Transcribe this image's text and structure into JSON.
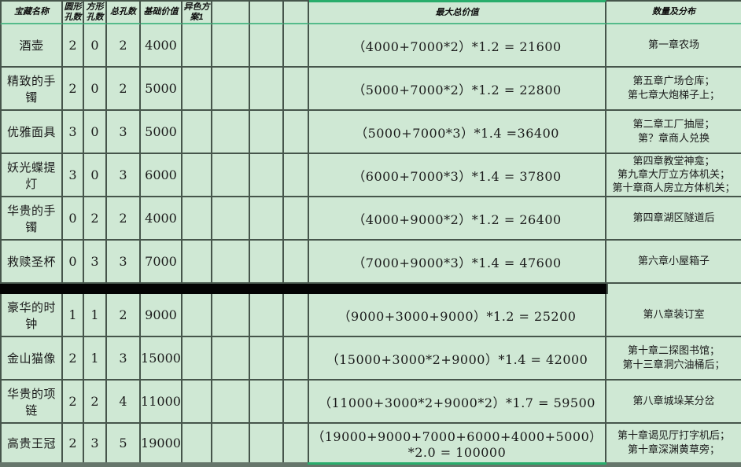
{
  "colors": {
    "background": "#cfe8d4",
    "grid_line": "#46554b",
    "header_rule_green": "#55bb8b",
    "selection_green": "#29ad6c",
    "divider_black": "#030303",
    "bottom_edge": "#66766b"
  },
  "table": {
    "headers": [
      {
        "label": "宝藏名称"
      },
      {
        "label": "圆形\n孔数"
      },
      {
        "label": "方形\n孔数"
      },
      {
        "label": "总孔数"
      },
      {
        "label": "基础价值"
      },
      {
        "label": "异色方\n案1"
      },
      {
        "label": ""
      },
      {
        "label": ""
      },
      {
        "label": ""
      },
      {
        "label": "最大总价值"
      },
      {
        "label": "数量及分布"
      }
    ],
    "divider_after_row": 6,
    "rows": [
      {
        "name": "酒壶",
        "round_holes": "2",
        "square_holes": "0",
        "total_holes": "2",
        "base_value": "4000",
        "scheme1": "",
        "extra1": "",
        "extra2": "",
        "extra3": "",
        "max_total_value": "（4000+7000*2）*1.2 = 21600",
        "distribution": "第一章农场"
      },
      {
        "name": "精致的手镯",
        "round_holes": "2",
        "square_holes": "0",
        "total_holes": "2",
        "base_value": "5000",
        "scheme1": "",
        "extra1": "",
        "extra2": "",
        "extra3": "",
        "max_total_value": "（5000+7000*2）*1.2 = 22800",
        "distribution": "第五章广场仓库；\n第七章大炮梯子上；"
      },
      {
        "name": "优雅面具",
        "round_holes": "3",
        "square_holes": "0",
        "total_holes": "3",
        "base_value": "5000",
        "scheme1": "",
        "extra1": "",
        "extra2": "",
        "extra3": "",
        "max_total_value": "（5000+7000*3）*1.4 =36400",
        "distribution": "第二章工厂抽屉；\n第？章商人兑换"
      },
      {
        "name": "妖光蝶提灯",
        "round_holes": "3",
        "square_holes": "0",
        "total_holes": "3",
        "base_value": "6000",
        "scheme1": "",
        "extra1": "",
        "extra2": "",
        "extra3": "",
        "max_total_value": "（6000+7000*3）*1.4 = 37800",
        "distribution": "第四章教堂神龛；\n第九章大厅立方体机关；\n第十章商人房立方体机关；"
      },
      {
        "name": "华贵的手镯",
        "round_holes": "0",
        "square_holes": "2",
        "total_holes": "2",
        "base_value": "4000",
        "scheme1": "",
        "extra1": "",
        "extra2": "",
        "extra3": "",
        "max_total_value": "（4000+9000*2）*1.2 = 26400",
        "distribution": "第四章湖区隧道后"
      },
      {
        "name": "救赎圣杯",
        "round_holes": "0",
        "square_holes": "3",
        "total_holes": "3",
        "base_value": "7000",
        "scheme1": "",
        "extra1": "",
        "extra2": "",
        "extra3": "",
        "max_total_value": "（7000+9000*3）*1.4 = 47600",
        "distribution": "第六章小屋箱子"
      },
      {
        "name": "豪华的时钟",
        "round_holes": "1",
        "square_holes": "1",
        "total_holes": "2",
        "base_value": "9000",
        "scheme1": "",
        "extra1": "",
        "extra2": "",
        "extra3": "",
        "max_total_value": "（9000+3000+9000）*1.2 = 25200",
        "distribution": "第八章装订室"
      },
      {
        "name": "金山猫像",
        "round_holes": "2",
        "square_holes": "1",
        "total_holes": "3",
        "base_value": "15000",
        "scheme1": "",
        "extra1": "",
        "extra2": "",
        "extra3": "",
        "max_total_value": "（15000+3000*2+9000）*1.4 = 42000",
        "distribution": "第十章二探图书馆；\n第十三章洞穴油桶后；"
      },
      {
        "name": "华贵的项链",
        "round_holes": "2",
        "square_holes": "2",
        "total_holes": "4",
        "base_value": "11000",
        "scheme1": "",
        "extra1": "",
        "extra2": "",
        "extra3": "",
        "max_total_value": "（11000+3000*2+9000*2）*1.7 = 59500",
        "distribution": "第八章城垛某分岔"
      },
      {
        "name": "高贵王冠",
        "round_holes": "2",
        "square_holes": "3",
        "total_holes": "5",
        "base_value": "19000",
        "scheme1": "",
        "extra1": "",
        "extra2": "",
        "extra3": "",
        "max_total_value": "（19000+9000+7000+6000+4000+5000）*2.0 = 100000",
        "distribution": "第十章谒见厅打字机后；\n第十章深渊黄草旁；"
      }
    ]
  }
}
